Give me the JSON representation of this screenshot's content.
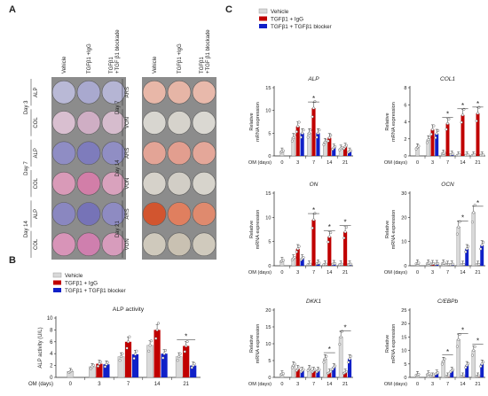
{
  "panels": {
    "A": {
      "label": "A",
      "left_group": {
        "columns": [
          "Vehicle",
          "TGFβ1 +IgG",
          "TGFβ1 +TGF β1 blockade"
        ],
        "rows": [
          {
            "day": "Day 3",
            "stain": "ALP"
          },
          {
            "day": "Day 3",
            "stain": "COL"
          },
          {
            "day": "Day 7",
            "stain": "ALP"
          },
          {
            "day": "Day 7",
            "stain": "COL"
          },
          {
            "day": "Day 14",
            "stain": "ALP"
          },
          {
            "day": "Day 14",
            "stain": "COL"
          }
        ],
        "days": [
          "Day 3",
          "Day 7",
          "Day 14"
        ],
        "stains": [
          "ALP",
          "COL",
          "ALP",
          "COL",
          "ALP",
          "COL"
        ],
        "well_colors": [
          [
            "#b9b9d6",
            "#a9a9cf",
            "#b5b5d4"
          ],
          [
            "#d9bfd0",
            "#cfaec4",
            "#d6bccd"
          ],
          [
            "#8f8dc4",
            "#7e7cbc",
            "#908ec4"
          ],
          [
            "#d99ab8",
            "#d27ea8",
            "#d9a2bd"
          ],
          [
            "#8a87c0",
            "#7673b7",
            "#8e8bc2"
          ],
          [
            "#d894b8",
            "#cf7fae",
            "#d79cbc"
          ]
        ]
      },
      "right_group": {
        "columns": [
          "Vehicle",
          "TGFβ1 +IgG",
          "TGFβ1 +TGF β1 blockade"
        ],
        "days": [
          "Day 7",
          "Day 14",
          "Day 21"
        ],
        "stains": [
          "ARS",
          "VON",
          "ARS",
          "VON",
          "ARS",
          "VON"
        ],
        "well_colors": [
          [
            "#e8b7a8",
            "#e6b5a6",
            "#e8b9ab"
          ],
          [
            "#d8d6d0",
            "#d6d3cc",
            "#dad8d2"
          ],
          [
            "#e3a496",
            "#e29e8f",
            "#e4a799"
          ],
          [
            "#d6d2ca",
            "#d2cec6",
            "#d7d4cc"
          ],
          [
            "#d2552f",
            "#e07f5f",
            "#df8a6e"
          ],
          [
            "#cfc9bc",
            "#c9c1b2",
            "#d0cabd"
          ]
        ]
      }
    },
    "B": {
      "label": "B",
      "legend": [
        "Vehicle",
        "TGFβ1 + IgG",
        "TGFβ1 + TGFβ1 blocker"
      ]
    },
    "C": {
      "label": "C",
      "legend": [
        "Vehicle",
        "TGFβ1 + IgG",
        "TGFβ1 + TGFβ1 blocker"
      ]
    }
  },
  "colors": {
    "vehicle": "#d9d9d9",
    "igg": "#c00000",
    "blocker": "#1020c8"
  },
  "chart_data": [
    {
      "id": "B",
      "type": "bar",
      "title": "ALP activity",
      "xlabel": "OM (days)",
      "ylabel": "ALP activity (U/L)",
      "categories": [
        "0",
        "3",
        "7",
        "14",
        "21"
      ],
      "ylim": [
        0,
        10
      ],
      "yticks": [
        "0",
        "2",
        "4",
        "6",
        "8",
        "10"
      ],
      "series": [
        {
          "name": "Vehicle",
          "values": [
            1.0,
            1.8,
            3.5,
            5.4,
            3.5
          ]
        },
        {
          "name": "TGFβ1 + IgG",
          "values": [
            null,
            2.3,
            6.0,
            8.0,
            5.3
          ]
        },
        {
          "name": "TGFβ1 + TGFβ1 blocker",
          "values": [
            null,
            2.2,
            3.9,
            4.0,
            2.0
          ]
        }
      ],
      "significance": [
        4
      ]
    },
    {
      "id": "ALP",
      "type": "bar",
      "title": "ALP",
      "xlabel": "OM (days)",
      "ylabel": "Relative mRNA expression",
      "categories": [
        "0",
        "3",
        "7",
        "14",
        "21"
      ],
      "ylim": [
        0,
        15
      ],
      "yticks": [
        "0",
        "5",
        "10",
        "15"
      ],
      "series": [
        {
          "name": "Vehicle",
          "values": [
            1.0,
            4.0,
            5.0,
            3.0,
            1.6
          ]
        },
        {
          "name": "TGFβ1 + IgG",
          "values": [
            null,
            6.5,
            10.5,
            4.0,
            2.0
          ]
        },
        {
          "name": "TGFβ1 + TGFβ1 blocker",
          "values": [
            null,
            5.0,
            5.0,
            1.8,
            1.0
          ]
        }
      ],
      "significance": [
        2
      ]
    },
    {
      "id": "COL1",
      "type": "bar",
      "title": "COL1",
      "xlabel": "OM (days)",
      "ylabel": "Relative mRNA expression",
      "categories": [
        "0",
        "3",
        "7",
        "14",
        "21"
      ],
      "ylim": [
        0,
        8
      ],
      "yticks": [
        "0",
        "2",
        "4",
        "6",
        "8"
      ],
      "series": [
        {
          "name": "Vehicle",
          "values": [
            1.0,
            1.9,
            0.3,
            0.1,
            0.1
          ]
        },
        {
          "name": "TGFβ1 + IgG",
          "values": [
            null,
            3.1,
            3.8,
            4.8,
            5.0
          ]
        },
        {
          "name": "TGFβ1 + TGFβ1 blocker",
          "values": [
            null,
            2.6,
            0.2,
            0.1,
            0.1
          ]
        }
      ],
      "significance": [
        2,
        3,
        4
      ]
    },
    {
      "id": "ON",
      "type": "bar",
      "title": "ON",
      "xlabel": "OM (days)",
      "ylabel": "Relative mRNA expression",
      "categories": [
        "0",
        "3",
        "7",
        "14",
        "21"
      ],
      "ylim": [
        0,
        15
      ],
      "yticks": [
        "0",
        "5",
        "10",
        "15"
      ],
      "series": [
        {
          "name": "Vehicle",
          "values": [
            1.0,
            1.5,
            0.3,
            0.3,
            0.3
          ]
        },
        {
          "name": "TGFβ1 + IgG",
          "values": [
            null,
            3.5,
            9.5,
            6.0,
            7.0
          ]
        },
        {
          "name": "TGFβ1 + TGFβ1 blocker",
          "values": [
            null,
            1.5,
            0.5,
            0.4,
            0.3
          ]
        }
      ],
      "significance": [
        2,
        3,
        4
      ]
    },
    {
      "id": "OCN",
      "type": "bar",
      "title": "OCN",
      "xlabel": "OM (days)",
      "ylabel": "Relative mRNA expression",
      "categories": [
        "0",
        "3",
        "7",
        "14",
        "21"
      ],
      "ylim": [
        0,
        30
      ],
      "yticks": [
        "0",
        "10",
        "20",
        "30"
      ],
      "series": [
        {
          "name": "Vehicle",
          "values": [
            1.0,
            1.0,
            1.0,
            16.0,
            22.0
          ]
        },
        {
          "name": "TGFβ1 + IgG",
          "values": [
            null,
            0.8,
            0.5,
            0.5,
            0.5
          ]
        },
        {
          "name": "TGFβ1 + TGFβ1 blocker",
          "values": [
            null,
            0.8,
            0.6,
            7.0,
            8.5
          ]
        }
      ],
      "significance": [
        3,
        4
      ]
    },
    {
      "id": "DKK1",
      "type": "bar",
      "title": "DKK1",
      "xlabel": "OM (days)",
      "ylabel": "Relative mRNA expression",
      "categories": [
        "0",
        "3",
        "7",
        "14",
        "21"
      ],
      "ylim": [
        0,
        20
      ],
      "yticks": [
        "0",
        "5",
        "10",
        "15",
        "20"
      ],
      "series": [
        {
          "name": "Vehicle",
          "values": [
            1.0,
            3.5,
            2.5,
            5.5,
            12.0
          ]
        },
        {
          "name": "TGFβ1 + IgG",
          "values": [
            null,
            2.5,
            2.0,
            1.5,
            1.5
          ]
        },
        {
          "name": "TGFβ1 + TGFβ1 blocker",
          "values": [
            null,
            2.0,
            2.0,
            3.0,
            5.5
          ]
        }
      ],
      "significance": [
        3,
        4
      ]
    },
    {
      "id": "CEBPb",
      "type": "bar",
      "title": "C/EBPb",
      "xlabel": "OM (days)",
      "ylabel": "Relative mRNA expression",
      "categories": [
        "0",
        "3",
        "7",
        "14",
        "21"
      ],
      "ylim": [
        0,
        25
      ],
      "yticks": [
        "0",
        "5",
        "10",
        "15",
        "20",
        "25"
      ],
      "series": [
        {
          "name": "Vehicle",
          "values": [
            1.0,
            1.2,
            6.0,
            14.0,
            10.0
          ]
        },
        {
          "name": "TGFβ1 + IgG",
          "values": [
            null,
            0.5,
            0.5,
            0.5,
            0.5
          ]
        },
        {
          "name": "TGFβ1 + TGFβ1 blocker",
          "values": [
            null,
            1.5,
            2.5,
            4.5,
            5.0
          ]
        }
      ],
      "significance": [
        2,
        3,
        4
      ]
    }
  ]
}
